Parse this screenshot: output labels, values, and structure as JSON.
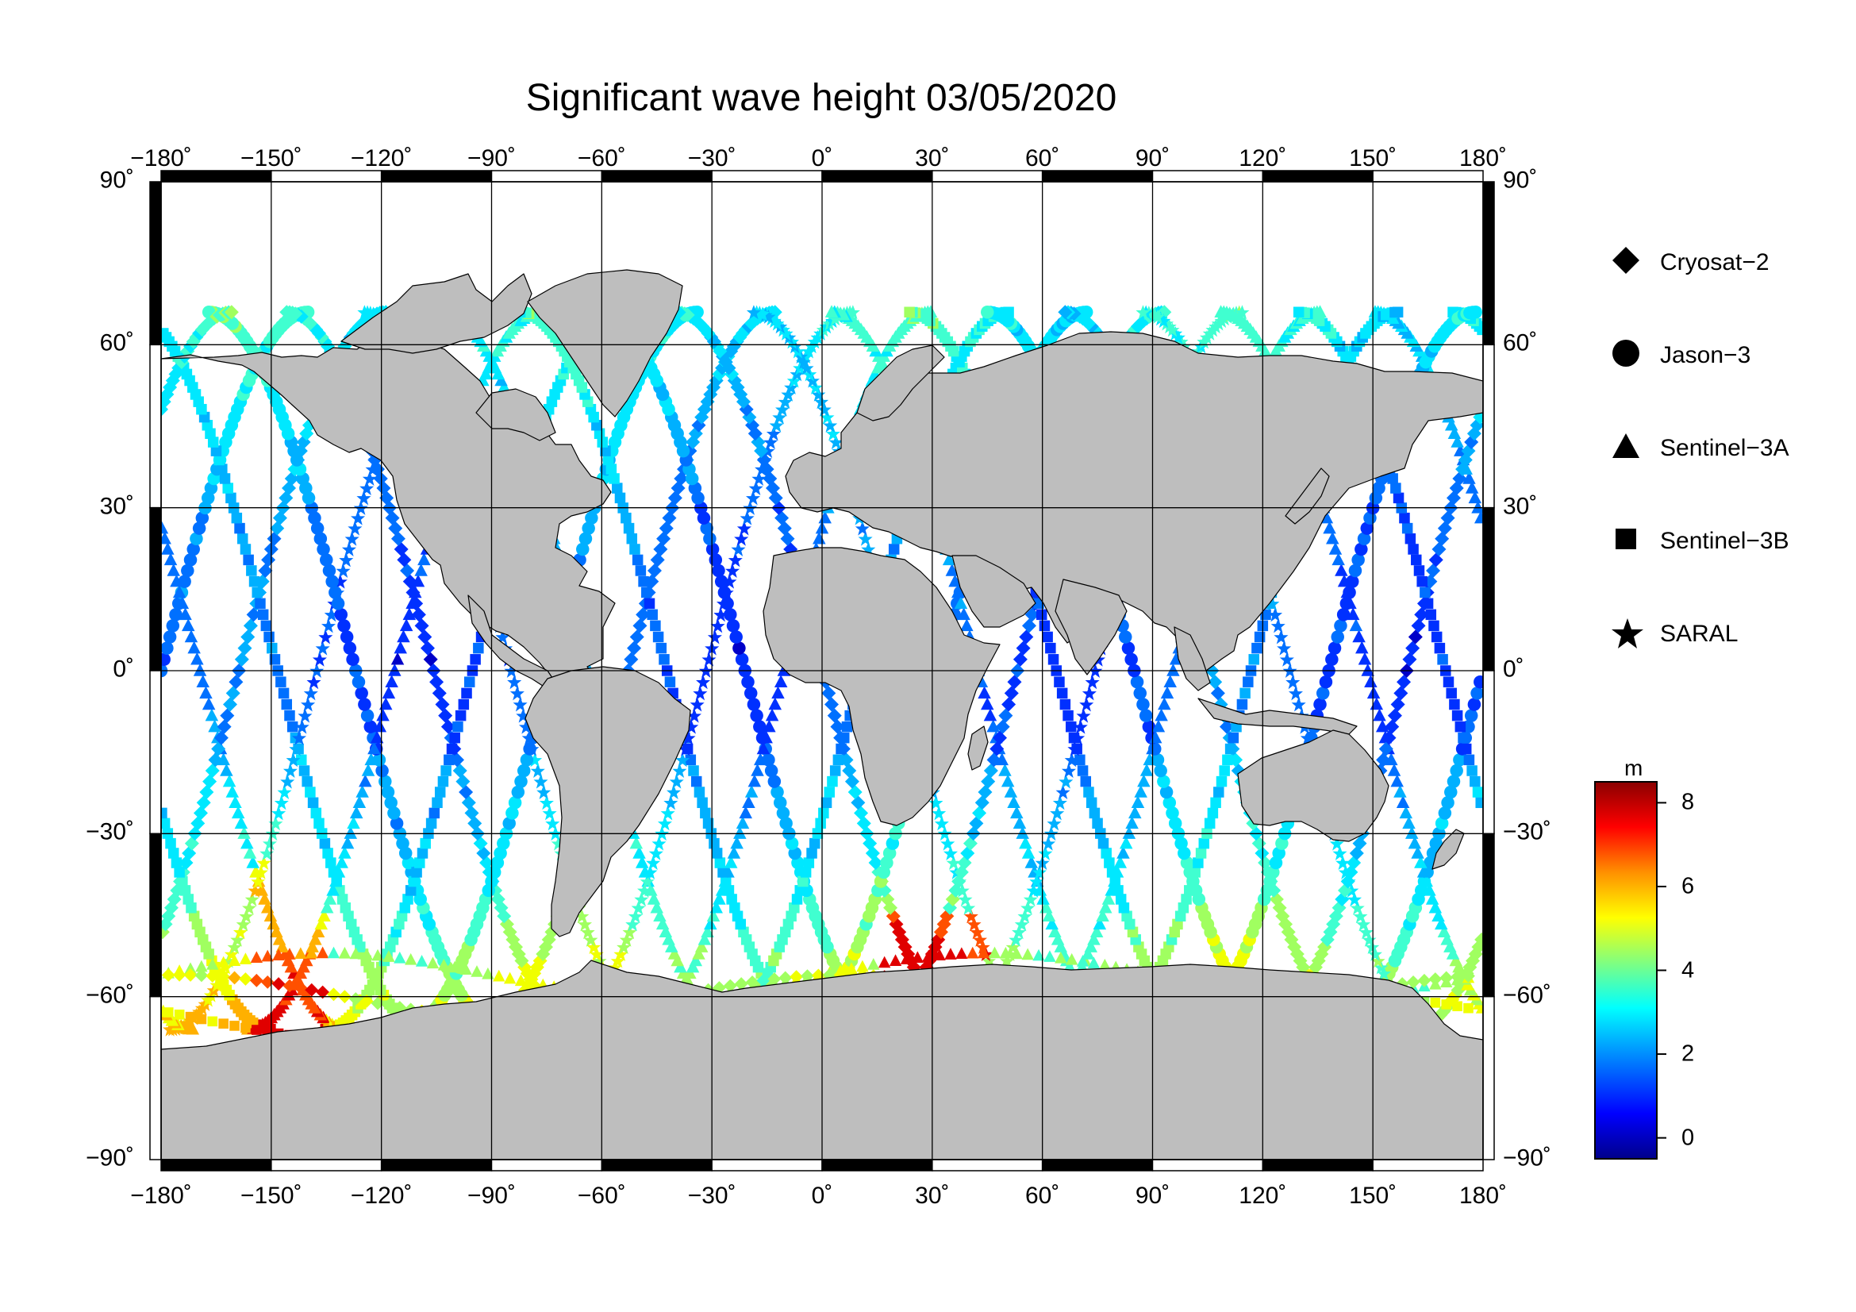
{
  "title": "Significant wave height 03/05/2020",
  "lon_labels": [
    "−180˚",
    "−150˚",
    "−120˚",
    "−90˚",
    "−60˚",
    "−30˚",
    "0˚",
    "30˚",
    "60˚",
    "90˚",
    "120˚",
    "150˚",
    "180˚"
  ],
  "lat_labels_left": [
    "90˚",
    "60˚",
    "30˚",
    "0˚",
    "−30˚",
    "−60˚",
    "−90˚"
  ],
  "lat_labels_right": [
    "90˚",
    "60˚",
    "30˚",
    "0˚",
    "−30˚",
    "−60˚",
    "−90˚"
  ],
  "legend": [
    {
      "label": "Cryosat−2",
      "icon": "diamond-icon"
    },
    {
      "label": "Jason−3",
      "icon": "circle-icon"
    },
    {
      "label": "Sentinel−3A",
      "icon": "triangle-icon"
    },
    {
      "label": "Sentinel−3B",
      "icon": "square-icon"
    },
    {
      "label": "SARAL",
      "icon": "star-icon"
    }
  ],
  "colorbar": {
    "unit": "m",
    "ticks": [
      "8",
      "6",
      "4",
      "2",
      "0"
    ],
    "range": [
      -0.5,
      8.5
    ],
    "colors": [
      "#000080",
      "#0000ff",
      "#0080ff",
      "#00ffff",
      "#80ff80",
      "#ffff00",
      "#ff8000",
      "#ff0000",
      "#800000"
    ]
  },
  "map": {
    "projection": "equirectangular",
    "lon_range": [
      -180,
      180
    ],
    "lat_range": [
      -90,
      90
    ],
    "grid_step_deg": 30,
    "land_color": "#bebebe",
    "ocean_color": "#ffffff"
  }
}
